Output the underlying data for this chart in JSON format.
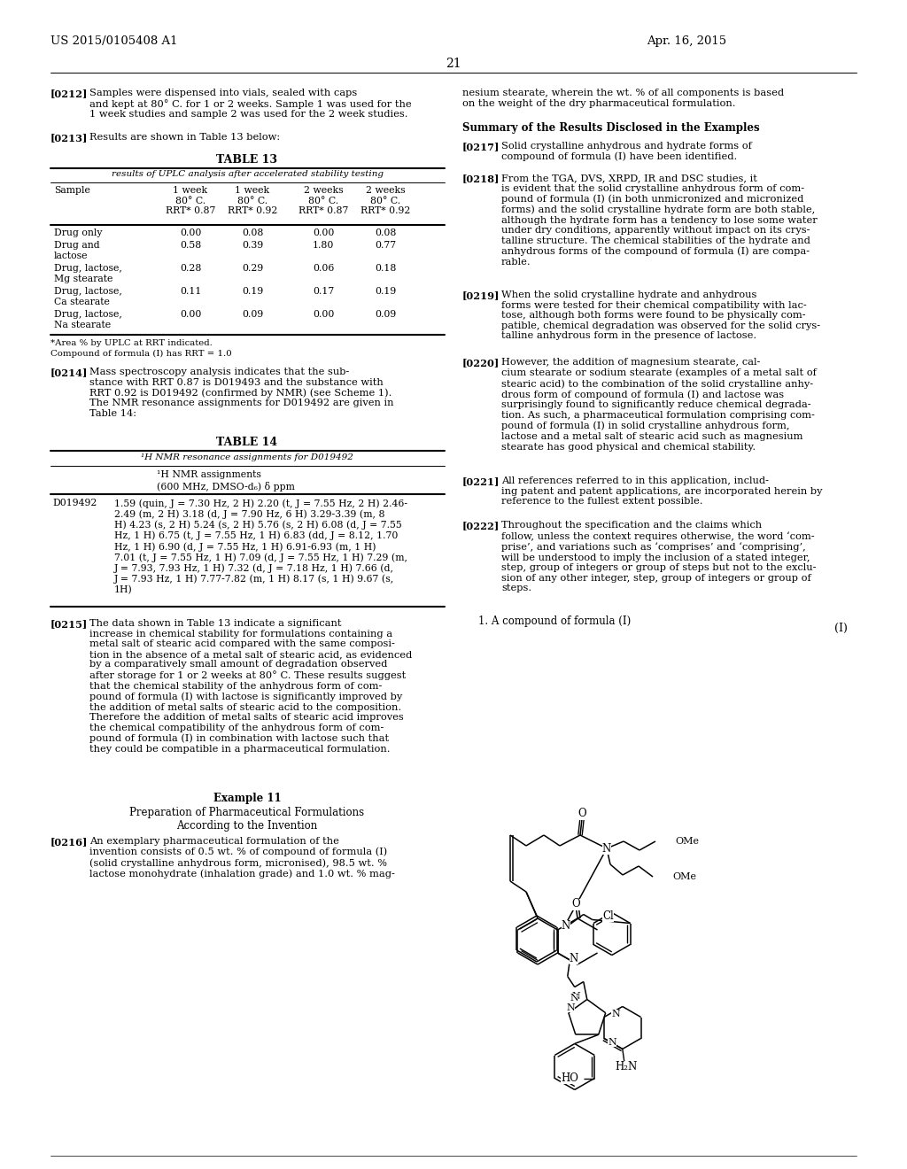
{
  "page_number": "21",
  "patent_number": "US 2015/0105408 A1",
  "patent_date": "Apr. 16, 2015",
  "background_color": "#ffffff",
  "text_color": "#000000"
}
